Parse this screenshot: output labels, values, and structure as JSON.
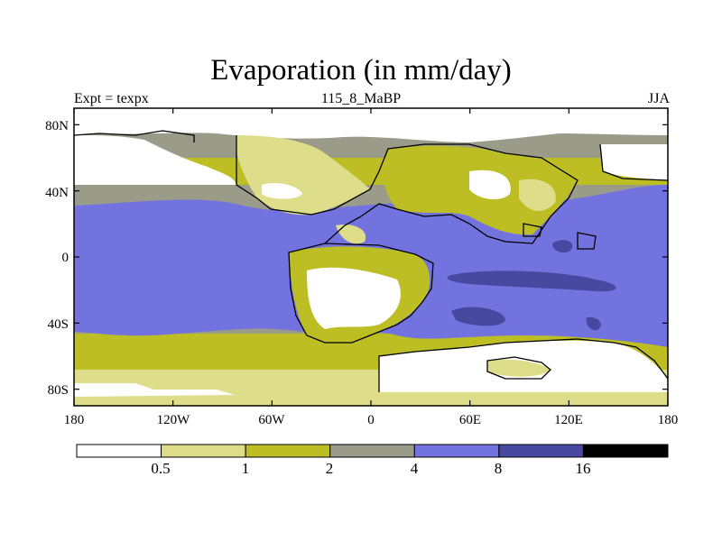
{
  "title": "Evaporation (in mm/day)",
  "left_label": "Expt = texpx",
  "center_label": "115_8_MaBP",
  "right_label": "JJA",
  "x_ticks": [
    "180",
    "120W",
    "60W",
    "0",
    "60E",
    "120E",
    "180"
  ],
  "x_tick_values": [
    -180,
    -120,
    -60,
    0,
    60,
    120,
    180
  ],
  "y_ticks": [
    "80N",
    "40N",
    "0",
    "40S",
    "80S"
  ],
  "y_tick_values": [
    80,
    40,
    0,
    -40,
    -80
  ],
  "colorbar": {
    "boundaries": [
      "0.5",
      "1",
      "2",
      "4",
      "8",
      "16"
    ],
    "colors": [
      "#ffffff",
      "#dede8a",
      "#bdbd24",
      "#9b9b8a",
      "#7373e0",
      "#4848a0",
      "#000000"
    ]
  },
  "chart_data": {
    "type": "heatmap",
    "title": "Evaporation (in mm/day)",
    "subtitle": "115_8_MaBP",
    "units": "mm/day",
    "season": "JJA",
    "experiment": "texpx",
    "xlim": [
      -180,
      180
    ],
    "ylim": [
      -90,
      90
    ],
    "levels": [
      0.5,
      1,
      2,
      4,
      8,
      16
    ],
    "level_colors": [
      "#ffffff",
      "#dede8a",
      "#bdbd24",
      "#9b9b8a",
      "#7373e0",
      "#4848a0",
      "#000000"
    ]
  }
}
